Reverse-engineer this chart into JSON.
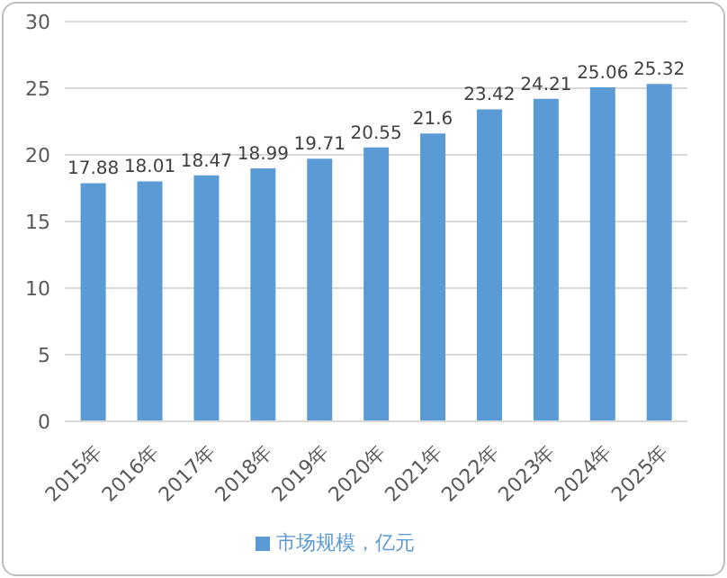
{
  "chart_data": {
    "type": "bar",
    "categories": [
      "2015年",
      "2016年",
      "2017年",
      "2018年",
      "2019年",
      "2020年",
      "2021年",
      "2022年",
      "2023年",
      "2024年",
      "2025年"
    ],
    "series": [
      {
        "name": "市场规模，亿元",
        "color": "#5b9bd5",
        "values": [
          17.88,
          18.01,
          18.47,
          18.99,
          19.71,
          20.55,
          21.6,
          23.42,
          24.21,
          25.06,
          25.32
        ]
      }
    ],
    "ylim": [
      0,
      30
    ],
    "yticks": [
      0,
      5,
      10,
      15,
      20,
      25,
      30
    ],
    "grid": "y",
    "legend": "bottom",
    "data_labels": true
  }
}
